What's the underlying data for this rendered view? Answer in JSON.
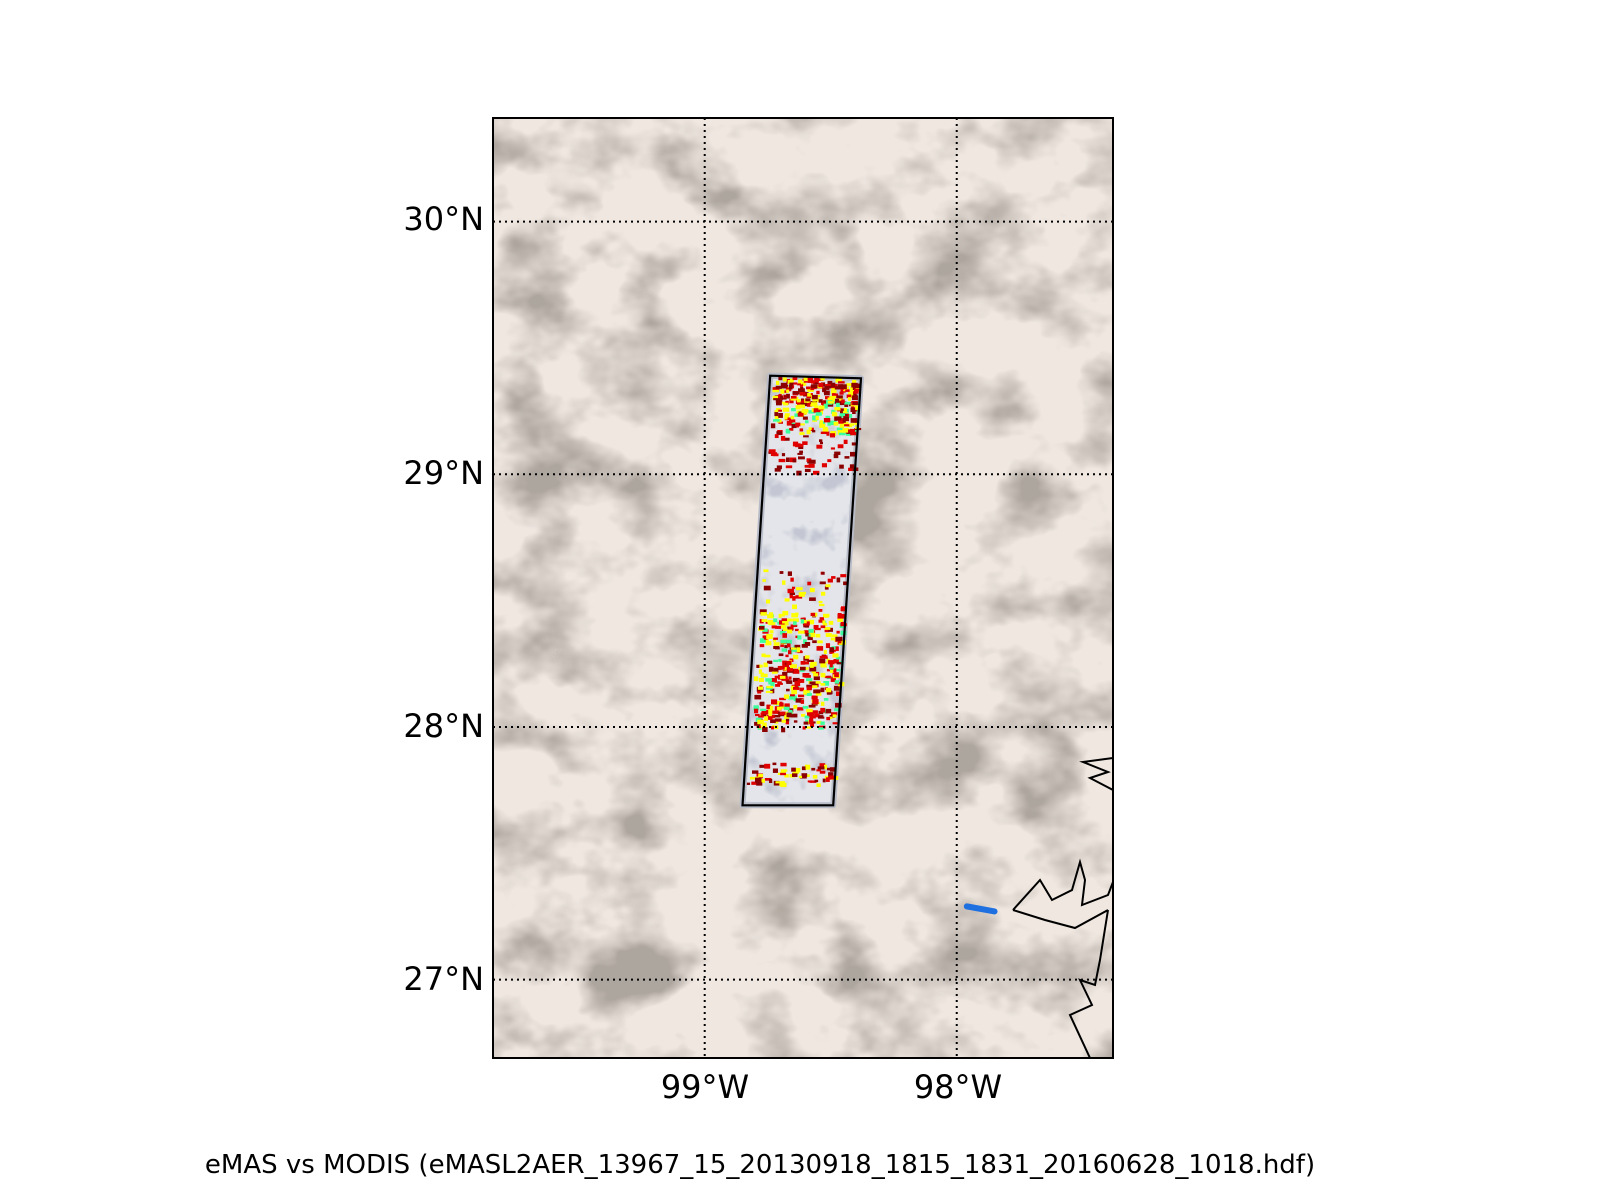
{
  "map": {
    "lat_labels": [
      "30°N",
      "29°N",
      "28°N",
      "27°N"
    ],
    "lon_labels": [
      "99°W",
      "98°W"
    ],
    "lat_values": [
      30,
      29,
      28,
      27
    ],
    "lon_values": [
      -99,
      -98
    ],
    "extent": {
      "lon_min": -99.84,
      "lon_max": -97.38,
      "lat_min": 26.69,
      "lat_max": 30.41
    },
    "gridlines": "dotted",
    "background": "true-color satellite imagery (cloud field)",
    "swath_outline": [
      [
        -98.74,
        29.39
      ],
      [
        -98.38,
        29.38
      ],
      [
        -98.49,
        27.69
      ],
      [
        -98.85,
        27.69
      ]
    ],
    "highlight_segment": [
      [
        -97.96,
        27.29
      ],
      [
        -97.85,
        27.27
      ]
    ],
    "highlight_color": "#1e6fe0",
    "colors": {
      "cloud": "#f2ece6",
      "cloud_shadow": "#5a534b",
      "swath_bg": "#dcdde3",
      "aod_low": "#3aff9c",
      "aod_mid": "#ffff00",
      "aod_high": "#e00000",
      "aod_max": "#8b0000"
    }
  },
  "caption": "eMAS vs MODIS (eMASL2AER_13967_15_20130918_1815_1831_20160628_1018.hdf)"
}
